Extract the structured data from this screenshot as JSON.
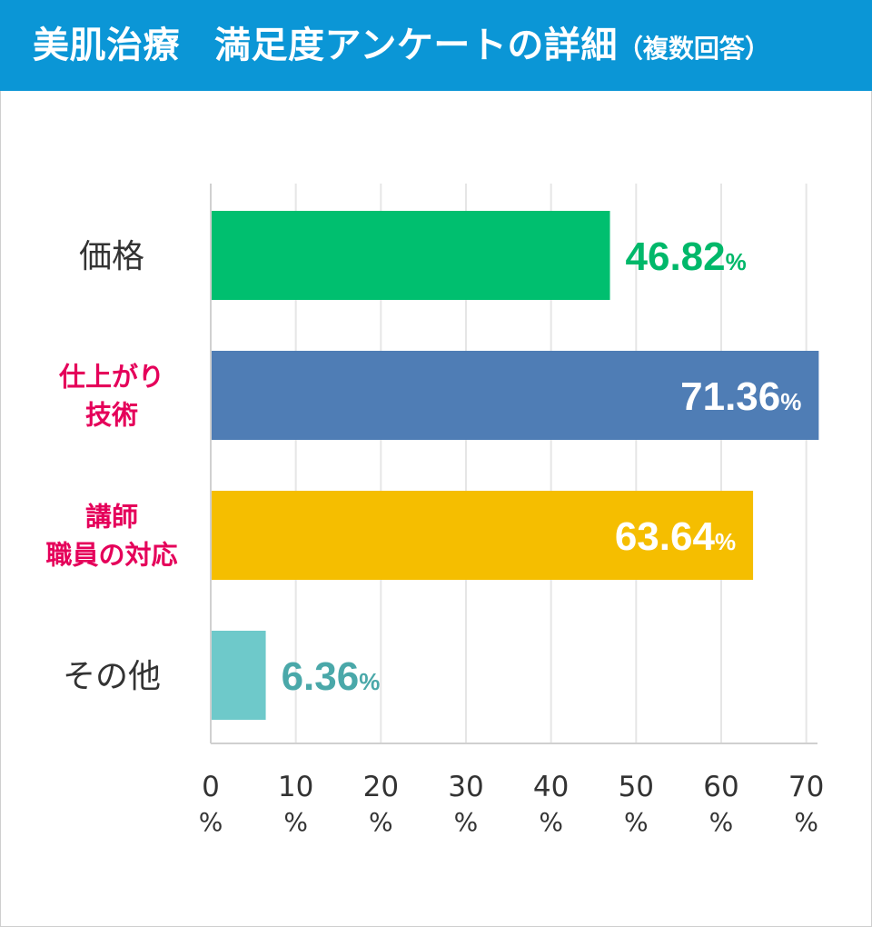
{
  "header": {
    "title_main": "美肌治療",
    "title_second": "満足度アンケートの詳細",
    "title_note": "（複数回答）"
  },
  "colors": {
    "header_bg": "#0b96d6",
    "grid": "#e6e6e6",
    "axis": "#d0d0d0"
  },
  "chart_data": {
    "type": "bar",
    "orientation": "horizontal",
    "title": "美肌治療　満足度アンケートの詳細（複数回答）",
    "categories": [
      {
        "lines": [
          "価格"
        ],
        "color": "#333333"
      },
      {
        "lines": [
          "仕上がり",
          "技術"
        ],
        "color": "#e5005a"
      },
      {
        "lines": [
          "講師",
          "職員の対応"
        ],
        "color": "#e5005a"
      },
      {
        "lines": [
          "その他"
        ],
        "color": "#333333"
      }
    ],
    "values": [
      46.82,
      71.36,
      63.64,
      6.36
    ],
    "value_labels": [
      "46.82",
      "71.36",
      "63.64",
      "6.36"
    ],
    "value_unit": "%",
    "bar_colors": [
      "#00bf6f",
      "#4f7db5",
      "#f5be00",
      "#6ec9ca"
    ],
    "value_label_colors": [
      "#00b86a",
      "#ffffff",
      "#ffffff",
      "#4aa8a9"
    ],
    "value_label_inside": [
      false,
      true,
      true,
      false
    ],
    "xlim": [
      0,
      71
    ],
    "x_ticks": [
      {
        "value": 0,
        "label": "0",
        "unit": "%"
      },
      {
        "value": 10,
        "label": "10",
        "unit": "%"
      },
      {
        "value": 20,
        "label": "20",
        "unit": "%"
      },
      {
        "value": 30,
        "label": "30",
        "unit": "%"
      },
      {
        "value": 40,
        "label": "40",
        "unit": "%"
      },
      {
        "value": 50,
        "label": "50",
        "unit": "%"
      },
      {
        "value": 60,
        "label": "60",
        "unit": "%"
      },
      {
        "value": 70,
        "label": "70",
        "unit": "%"
      }
    ],
    "grid": true,
    "legend": "none"
  }
}
